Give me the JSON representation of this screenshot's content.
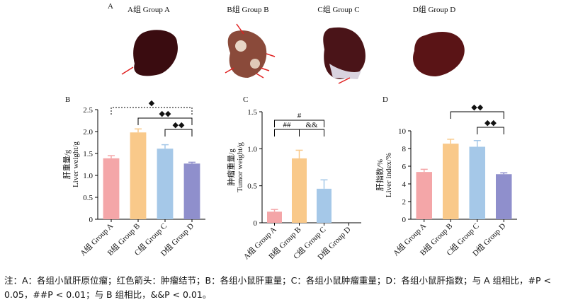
{
  "panel_a": {
    "label": "A",
    "groups": [
      "A组 Group A",
      "B组 Group B",
      "C组 Group C",
      "D组 Group D"
    ]
  },
  "chart_data": [
    {
      "type": "bar",
      "panel": "B",
      "ylabel": [
        "肝重量/g",
        "Liver weight/g"
      ],
      "categories": [
        "A组 Group A",
        "B组 Group B",
        "C组 Group C",
        "D组 Group D"
      ],
      "values": [
        1.39,
        1.98,
        1.61,
        1.27
      ],
      "errors": [
        0.06,
        0.08,
        0.09,
        0.03
      ],
      "colors": [
        "#f4a6a8",
        "#f9c98a",
        "#a5c8e8",
        "#8f8fcc"
      ],
      "ylim": [
        0,
        2.5
      ],
      "yticks": [
        0,
        0.5,
        {
          "value": 1,
          "label": "1.0"
        },
        1.5,
        {
          "value": 2,
          "label": "2.0"
        },
        2.5
      ],
      "annotations": [
        "◆",
        "◆◆",
        "◆◆"
      ]
    },
    {
      "type": "bar",
      "panel": "C",
      "ylabel": [
        "肿瘤重量/g",
        "Tumor weight/g"
      ],
      "categories": [
        "A组 Group A",
        "B组 Group B",
        "C组 Group C",
        "D组 Group D"
      ],
      "values": [
        0.15,
        0.87,
        0.46,
        0
      ],
      "errors": [
        0.03,
        0.11,
        0.12,
        0
      ],
      "colors": [
        "#f4a6a8",
        "#f9c98a",
        "#a5c8e8",
        "#8f8fcc"
      ],
      "ylim": [
        0,
        1.5
      ],
      "yticks": [
        0,
        0.5,
        {
          "value": 1,
          "label": "1.0"
        },
        1.5
      ],
      "annotations": [
        "#",
        "##",
        "&&"
      ]
    },
    {
      "type": "bar",
      "panel": "D",
      "ylabel": [
        "肝指数/%",
        "Liver index/%"
      ],
      "categories": [
        "A组 Group A",
        "B组 Group B",
        "C组 Group C",
        "D组 Group D"
      ],
      "values": [
        5.35,
        8.55,
        8.2,
        5.1
      ],
      "errors": [
        0.3,
        0.5,
        0.7,
        0.15
      ],
      "colors": [
        "#f4a6a8",
        "#f9c98a",
        "#a5c8e8",
        "#8f8fcc"
      ],
      "ylim": [
        0,
        10
      ],
      "yticks": [
        0,
        2,
        4,
        6,
        8,
        10
      ],
      "annotations": [
        "◆◆",
        "◆◆"
      ]
    }
  ],
  "caption": "注：A：各组小鼠肝原位瘤；红色箭头：肿瘤结节；B：各组小鼠肝重量；C：各组小鼠肿瘤重量；D：各组小鼠肝指数；与 A 组相比，#P < 0.05，##P < 0.01；与 B 组相比，&&P < 0.01。"
}
